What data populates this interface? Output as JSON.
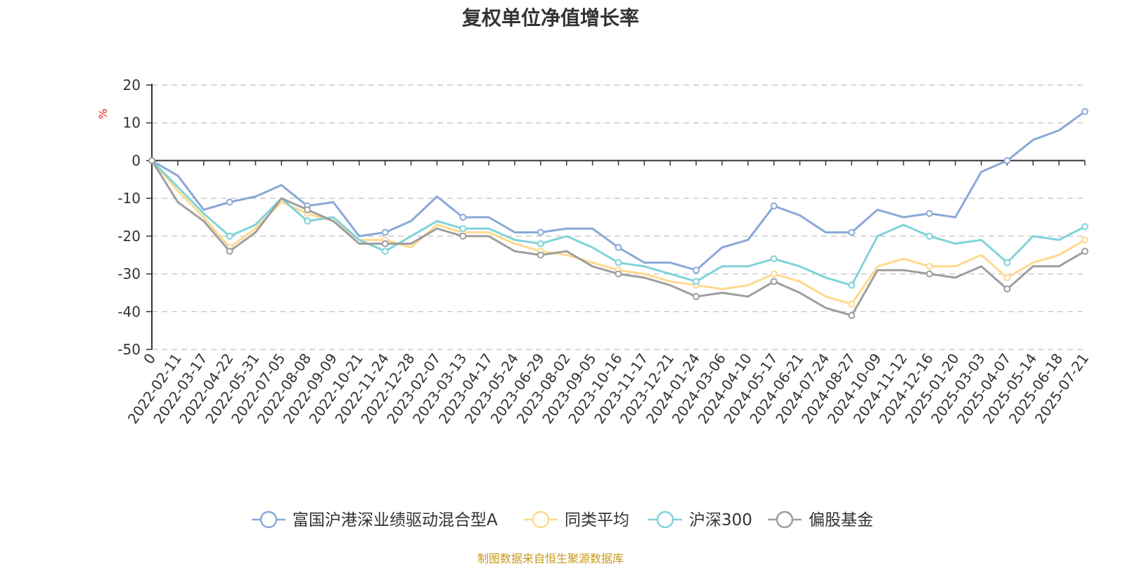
{
  "chart_data": {
    "type": "line",
    "title": "复权单位净值增长率",
    "ylabel": "%",
    "ylim": [
      -50,
      20
    ],
    "yticks": [
      20,
      10,
      0,
      -10,
      -20,
      -30,
      -40,
      -50
    ],
    "grid": true,
    "legend_position": "bottom",
    "x_tick_labels": [
      "0",
      "2022-02-11",
      "2022-03-17",
      "2022-04-22",
      "2022-05-31",
      "2022-07-05",
      "2022-08-08",
      "2022-09-09",
      "2022-10-21",
      "2022-11-24",
      "2022-12-28",
      "2023-02-07",
      "2023-03-13",
      "2023-04-17",
      "2023-05-24",
      "2023-06-29",
      "2023-08-02",
      "2023-09-05",
      "2023-10-16",
      "2023-11-17",
      "2023-12-21",
      "2024-01-24",
      "2024-03-06",
      "2024-04-10",
      "2024-05-17",
      "2024-06-21",
      "2024-07-24",
      "2024-08-27",
      "2024-10-09",
      "2024-11-12",
      "2024-12-16",
      "2025-01-20",
      "2025-03-03",
      "2025-04-07",
      "2025-05-14",
      "2025-06-18",
      "2025-07-21"
    ],
    "series": [
      {
        "name": "富国沪港深业绩驱动混合型A",
        "color": "#8ba8d8",
        "values": [
          0,
          -4,
          -13,
          -11,
          -9.5,
          -6.5,
          -12,
          -11,
          -20,
          -19,
          -16,
          -9.5,
          -15,
          -15,
          -19,
          -19,
          -18,
          -18,
          -23,
          -27,
          -27,
          -29,
          -23,
          -21,
          -12,
          -14.5,
          -19,
          -19,
          -13,
          -15,
          -14,
          -15,
          -3,
          0,
          5.5,
          8,
          13
        ]
      },
      {
        "name": "同类平均",
        "color": "#ffd98e",
        "values": [
          0,
          -8,
          -15,
          -23,
          -18,
          -11,
          -14,
          -16,
          -21,
          -21,
          -23,
          -17,
          -19,
          -19,
          -22,
          -24,
          -25,
          -27,
          -29,
          -30,
          -32,
          -33,
          -34,
          -33,
          -30,
          -32,
          -36,
          -38,
          -28,
          -26,
          -28,
          -28,
          -25,
          -31,
          -27,
          -25,
          -21
        ]
      },
      {
        "name": "沪深300",
        "color": "#7fd3d8",
        "values": [
          0,
          -7,
          -14,
          -20,
          -17,
          -10,
          -16,
          -15,
          -21,
          -24,
          -20,
          -16,
          -18,
          -18,
          -21,
          -22,
          -20,
          -23,
          -27,
          -28,
          -30,
          -32,
          -28,
          -28,
          -26,
          -28,
          -31,
          -33,
          -20,
          -17,
          -20,
          -22,
          -21,
          -27,
          -20,
          -21,
          -17.5
        ]
      },
      {
        "name": "偏股基金",
        "color": "#9e9e9e",
        "values": [
          0,
          -11,
          -16,
          -24,
          -19,
          -10,
          -13,
          -16,
          -22,
          -22,
          -22,
          -18,
          -20,
          -20,
          -24,
          -25,
          -24,
          -28,
          -30,
          -31,
          -33,
          -36,
          -35,
          -36,
          -32,
          -35,
          -39,
          -41,
          -29,
          -29,
          -30,
          -31,
          -28,
          -34,
          -28,
          -28,
          -24
        ]
      }
    ]
  },
  "source_note": "制图数据来自恒生聚源数据库"
}
